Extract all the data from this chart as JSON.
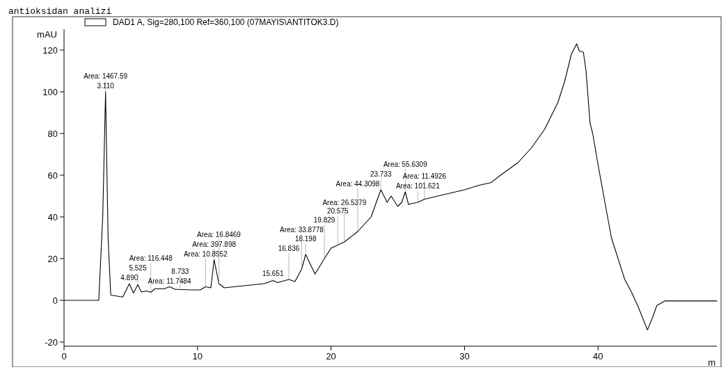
{
  "chart_data": {
    "type": "line",
    "title": "antioksidan analizi",
    "ylabel": "mAU",
    "xlabel": "m",
    "legend": "top left",
    "grid": false,
    "marker": "none",
    "line_style": "solid",
    "xlim": [
      0,
      48.9
    ],
    "ylim": [
      -22,
      130
    ],
    "xticks": [
      0,
      10,
      20,
      30,
      40
    ],
    "yticks": [
      -20,
      0,
      20,
      40,
      60,
      80,
      100,
      120
    ],
    "series": [
      {
        "name": "DAD1 A, Sig=280,100 Ref=360,100 (07MAYIS\\ANTITOK3.D)",
        "color": "#000000",
        "x": [
          0,
          2.6,
          2.9,
          3.11,
          3.3,
          3.5,
          4.4,
          4.89,
          5.2,
          5.525,
          5.8,
          6.2,
          6.5,
          6.8,
          7.5,
          7.9,
          8.3,
          9.5,
          10.2,
          10.6,
          11.0,
          11.24,
          11.6,
          12,
          15,
          15.65,
          16,
          16.84,
          17.3,
          17.8,
          18.1,
          18.8,
          19.5,
          20,
          21,
          22,
          23,
          23.73,
          24.2,
          24.5,
          25,
          25.3,
          25.56,
          25.8,
          26.5,
          27,
          28,
          29,
          30,
          31,
          32,
          32.7,
          34,
          35,
          36,
          37,
          37.5,
          38,
          38.4,
          38.6,
          38.9,
          39.1,
          39.4,
          39.6,
          40,
          41,
          42,
          42.5,
          43,
          43.5,
          43.7,
          44.1,
          44.4,
          45,
          48.9
        ],
        "values": [
          0,
          0,
          40,
          100,
          30,
          2.5,
          1.6,
          7.9,
          3.5,
          7.5,
          4,
          4.5,
          3.8,
          5.5,
          5.5,
          6.5,
          5.3,
          5,
          5,
          6.5,
          6,
          19.5,
          8,
          6,
          8,
          9.5,
          8.5,
          10,
          9,
          15,
          22,
          12.6,
          20,
          25,
          28,
          33,
          40,
          53,
          47,
          50,
          45,
          47,
          52,
          46,
          47,
          48.5,
          50,
          51.5,
          53,
          55,
          56.5,
          60,
          66,
          73,
          82,
          95,
          105,
          118,
          123,
          119.5,
          119,
          110,
          85,
          80,
          65,
          30,
          10,
          4,
          -3,
          -11,
          -14.2,
          -8,
          -2.5,
          -0.3,
          -0.3
        ]
      }
    ],
    "annotations": [
      {
        "text": "3.110",
        "x": 3.11,
        "y": 100
      },
      {
        "text": "Area: 1467.59",
        "x": 3.11,
        "y": 100
      },
      {
        "text": "4.890",
        "x": 4.89,
        "y": 7.9
      },
      {
        "text": "5.525",
        "x": 5.525,
        "y": 7.5
      },
      {
        "text": "Area: 116.448",
        "x": 6.5,
        "y": 3.8
      },
      {
        "text": "Area: 11.7484",
        "x": 7.9,
        "y": 6.5
      },
      {
        "text": "8.733",
        "x": 8.7,
        "y": 5.3
      },
      {
        "text": "Area: 10.8952",
        "x": 10.6,
        "y": 6.5
      },
      {
        "text": "Area: 397.898",
        "x": 11.24,
        "y": 19.5
      },
      {
        "text": "Area: 16.8469",
        "x": 11.6,
        "y": 8
      },
      {
        "text": "15.651",
        "x": 15.65,
        "y": 9.5
      },
      {
        "text": "16.836",
        "x": 16.84,
        "y": 10
      },
      {
        "text": "18.198",
        "x": 18.1,
        "y": 22
      },
      {
        "text": "Area: 33.8778",
        "x": 17.8,
        "y": 15
      },
      {
        "text": "19.829",
        "x": 19.5,
        "y": 20
      },
      {
        "text": "20.575",
        "x": 20.5,
        "y": 26
      },
      {
        "text": "Area: 26.5379",
        "x": 21,
        "y": 28
      },
      {
        "text": "Area: 44.3098",
        "x": 22,
        "y": 33
      },
      {
        "text": "23.733",
        "x": 23.73,
        "y": 53
      },
      {
        "text": "Area: 55.6309",
        "x": 25.56,
        "y": 52
      },
      {
        "text": "Area: 101.621",
        "x": 26.5,
        "y": 47
      },
      {
        "text": "Area: 11.4926",
        "x": 27,
        "y": 48.5
      }
    ]
  }
}
